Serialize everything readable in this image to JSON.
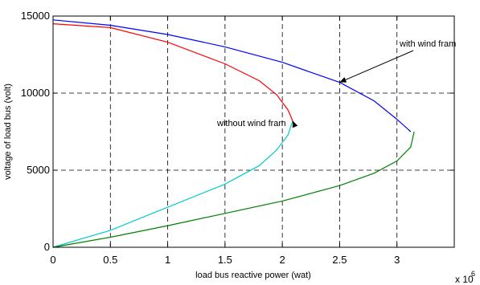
{
  "chart_data": {
    "type": "line",
    "title": "",
    "xlabel": "load bus reactive power (wat)",
    "ylabel": "voltage of load bus (volt)",
    "x_multiplier_label": "x 10",
    "x_multiplier_exponent": "6",
    "xlim": [
      0,
      3.5
    ],
    "ylim": [
      0,
      15000
    ],
    "x_tick_values": [
      0,
      0.5,
      1,
      1.5,
      2,
      2.5,
      3
    ],
    "x_tick_labels": [
      "0",
      "0.5",
      "1",
      "1.5",
      "2",
      "2.5",
      "3"
    ],
    "y_tick_values": [
      0,
      5000,
      10000,
      15000
    ],
    "y_tick_labels": [
      "0",
      "5000",
      "10000",
      "15000"
    ],
    "grid": true,
    "grid_style": "dashed",
    "series": [
      {
        "color": "#ff0000",
        "points": [
          [
            0.0,
            14500
          ],
          [
            0.5,
            14250
          ],
          [
            1.0,
            13300
          ],
          [
            1.5,
            11900
          ],
          [
            1.8,
            10800
          ],
          [
            1.95,
            9900
          ],
          [
            2.05,
            8900
          ],
          [
            2.09,
            8200
          ]
        ]
      },
      {
        "color": "#00cccc",
        "points": [
          [
            0.0,
            0
          ],
          [
            0.5,
            1100
          ],
          [
            1.0,
            2600
          ],
          [
            1.5,
            4100
          ],
          [
            1.8,
            5300
          ],
          [
            1.95,
            6300
          ],
          [
            2.05,
            7300
          ],
          [
            2.09,
            8200
          ]
        ]
      },
      {
        "color": "#0000ff",
        "points": [
          [
            0.0,
            14750
          ],
          [
            0.5,
            14400
          ],
          [
            1.0,
            13800
          ],
          [
            1.5,
            13000
          ],
          [
            2.0,
            12000
          ],
          [
            2.5,
            10700
          ],
          [
            2.8,
            9500
          ],
          [
            3.0,
            8300
          ],
          [
            3.12,
            7500
          ]
        ]
      },
      {
        "color": "#008000",
        "points": [
          [
            0.0,
            0
          ],
          [
            0.5,
            650
          ],
          [
            1.0,
            1400
          ],
          [
            1.5,
            2200
          ],
          [
            2.0,
            3000
          ],
          [
            2.5,
            4000
          ],
          [
            2.8,
            4800
          ],
          [
            3.0,
            5600
          ],
          [
            3.12,
            6500
          ],
          [
            3.15,
            7500
          ]
        ]
      }
    ],
    "annotations": [
      {
        "text": "with wind fram",
        "arrow_to": [
          2.5,
          10700
        ]
      },
      {
        "text": "without wind fram",
        "arrow_to": [
          2.09,
          8200
        ]
      }
    ]
  }
}
